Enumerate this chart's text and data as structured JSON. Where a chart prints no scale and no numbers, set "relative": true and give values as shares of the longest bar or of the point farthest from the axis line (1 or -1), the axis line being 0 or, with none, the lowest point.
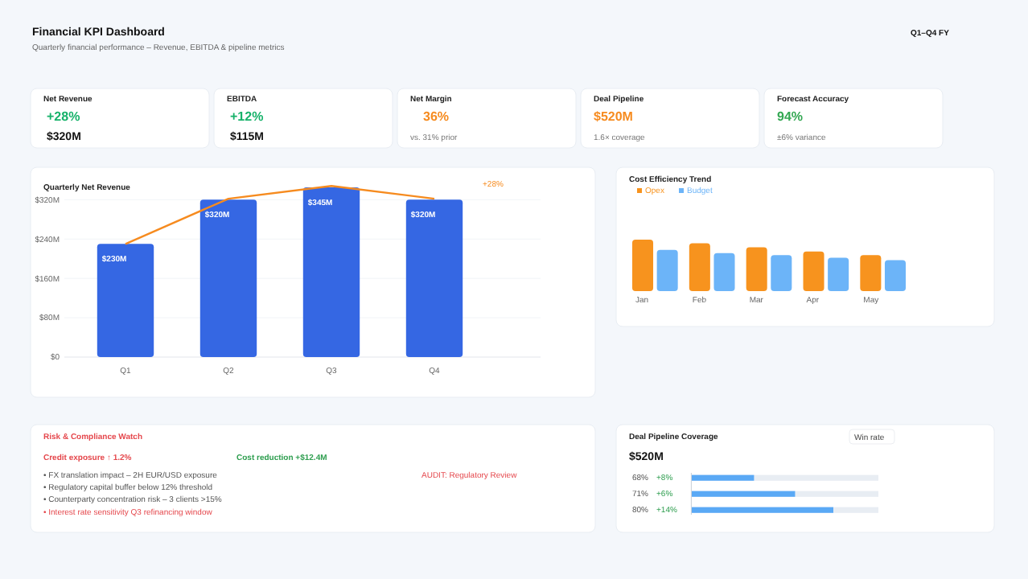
{
  "chart_data": [
    {
      "type": "other",
      "title": "Financial KPI Dashboard",
      "subtitle": "Quarterly financial performance – Revenue, EBITDA & pipeline metrics",
      "annotations": [
        "Q1–Q4 FY",
        "Net Revenue",
        "+28%",
        "$320M",
        "EBITDA",
        "+12%",
        "$115M",
        "Net Margin",
        "36%",
        "vs. 31% prior",
        "Deal Pipeline",
        "$520M",
        "1.6× coverage",
        "Forecast Accuracy",
        "94%",
        "±6% variance"
      ]
    },
    {
      "type": "bar",
      "title": "Quarterly Net Revenue",
      "categories": [
        "Q1",
        "Q2",
        "Q3",
        "Q4"
      ],
      "series": [
        {
          "type": "bar",
          "color": "#3567e3",
          "values": [
            230,
            320,
            345,
            320
          ],
          "value_labels": [
            "$230M",
            "$320M",
            "$345M",
            "$320M"
          ]
        },
        {
          "type": "line",
          "color": "#f68b1f",
          "values": [
            230,
            322,
            348,
            322
          ]
        }
      ],
      "ylim": [
        0,
        350
      ],
      "yticks": [
        {
          "value": 0,
          "label": "$0"
        },
        {
          "value": 80,
          "label": "$80M"
        },
        {
          "value": 160,
          "label": "$160M"
        },
        {
          "value": 240,
          "label": "$240M"
        },
        {
          "value": 320,
          "label": "$320M"
        }
      ],
      "grid": "y",
      "annotations": [
        "+28%"
      ]
    },
    {
      "type": "bar",
      "title": "Cost Efficiency Trend",
      "categories": [
        "Jan",
        "Feb",
        "Mar",
        "Apr",
        "May"
      ],
      "relative": true,
      "legend": "top left",
      "series": [
        {
          "name": "Opex",
          "color": "#f7931e",
          "values": [
            1,
            0.93,
            0.85,
            0.77,
            0.7
          ]
        },
        {
          "name": "Budget",
          "color": "#6cb4f8",
          "values": [
            0.8,
            0.74,
            0.7,
            0.65,
            0.6
          ]
        }
      ]
    },
    {
      "type": "other",
      "title": "Risk & Compliance Watch",
      "annotations": [
        "Credit exposure ↑ 1.2%",
        "Cost reduction +$12.4M",
        "• FX translation impact – 2H EUR/USD exposure",
        "• Regulatory capital buffer below 12% threshold",
        "• Counterparty concentration risk – 3 clients >15%",
        "• Interest rate sensitivity Q3 refinancing window",
        "AUDIT: Regulatory Review"
      ]
    },
    {
      "type": "bar",
      "orientation": "horizontal",
      "relative": true,
      "title": "Deal Pipeline Coverage",
      "subtitle": "$520M",
      "categories": [
        null,
        null,
        null
      ],
      "values": [
        0.44,
        0.73,
        1
      ],
      "color": "#5aa9f5",
      "annotations": [
        "Win rate",
        "68%",
        "+8%",
        "71%",
        "+6%",
        "80%",
        "+14%"
      ]
    }
  ]
}
